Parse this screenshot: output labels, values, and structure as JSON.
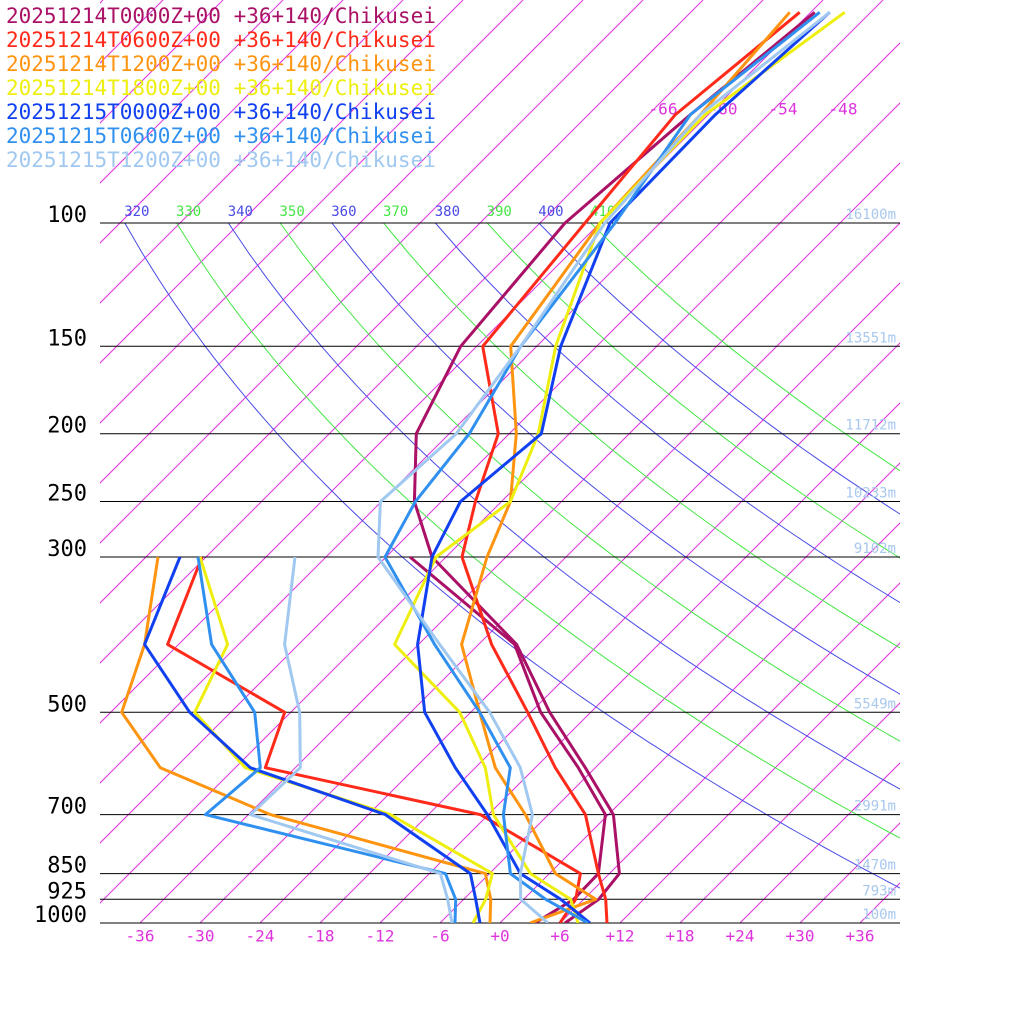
{
  "chart_data": {
    "type": "skewt",
    "ylim": [
      1000,
      48
    ],
    "yticks": [
      100,
      150,
      200,
      250,
      300,
      500,
      700,
      850,
      925,
      1000
    ],
    "height_labels": [
      "16100m",
      "13551m",
      "11712m",
      "10233m",
      "9102m",
      "5549m",
      "2991m",
      "1470m",
      "793m",
      "100m"
    ],
    "xlim": [
      -40,
      40
    ],
    "xticks": [
      -36,
      -30,
      -24,
      -18,
      -12,
      -6,
      {
        "value": 0,
        "label": "+0"
      },
      {
        "value": 6,
        "label": "+6"
      },
      {
        "value": 12,
        "label": "+12"
      },
      {
        "value": 18,
        "label": "+18"
      },
      {
        "value": 24,
        "label": "+24"
      },
      {
        "value": 30,
        "label": "+30"
      },
      {
        "value": 36,
        "label": "+36"
      }
    ],
    "top_xticks": [
      -66,
      -60,
      -54,
      -48
    ],
    "isotherm_step": 6,
    "isotherm_color": "#dd33dd",
    "theta_ticks": [
      320,
      330,
      340,
      350,
      360,
      370,
      380,
      390,
      400,
      410
    ],
    "theta_colors": [
      "#4a4ae6",
      "#44e644"
    ],
    "pressure_levels": [
      1000,
      925,
      850,
      700,
      600,
      500,
      400,
      300,
      250,
      200,
      150,
      100,
      70,
      50
    ],
    "dewpoint_levels": [
      1000,
      925,
      850,
      700,
      600,
      500,
      400,
      300
    ],
    "series": [
      {
        "name": "20251214T0000Z+00 +36+140/Chikusei",
        "color": "#aa1166",
        "temperature": [
          6.5,
          7.5,
          7,
          0.5,
          -7,
          -16.1,
          -26.2,
          -43.4,
          -50.7,
          -57.3,
          -61.6,
          -63.5,
          -61.8,
          -59.6
        ],
        "dewpoint": [
          3.5,
          5,
          4.9,
          -0.3,
          -7.7,
          -17,
          -26.4,
          -45.6
        ]
      },
      {
        "name": "20251214T0600Z+00 +36+140/Chikusei",
        "color": "#ff2a1a",
        "temperature": [
          10.7,
          8.2,
          4.9,
          -2.3,
          -10,
          -18.3,
          -28.7,
          -40.4,
          -44.6,
          -49.1,
          -59.4,
          -61.5,
          -63.3,
          -61.1
        ],
        "dewpoint": [
          6,
          5.2,
          3.1,
          -12.8,
          -39,
          -42.6,
          -61.1,
          -66.4
        ]
      },
      {
        "name": "20251214T1200Z+00 +36+140/Chikusei",
        "color": "#ff9410",
        "temperature": [
          3,
          7.2,
          0.6,
          -8.3,
          -16,
          -23.1,
          -31.7,
          -37.9,
          -41.1,
          -47.3,
          -56.6,
          -60,
          -60.8,
          -62.1
        ],
        "dewpoint": [
          -1,
          -3.3,
          -6.4,
          -33.8,
          -49.5,
          -58.9,
          -63.4,
          -70.8
        ]
      },
      {
        "name": "20251214T1800Z+00 +36+140/Chikusei",
        "color": "#eeee10",
        "temperature": [
          7.8,
          4.7,
          -1.9,
          -11.5,
          -17,
          -25.1,
          -38.4,
          -43,
          -41.1,
          -45.1,
          -52.1,
          -60,
          -60.3,
          -56.6
        ],
        "dewpoint": [
          -2.7,
          -3.8,
          -5.7,
          -21.8,
          -41,
          -51.6,
          -55.1,
          -66.6
        ]
      },
      {
        "name": "20251215T0000Z+00 +36+140/Chikusei",
        "color": "#1040f0",
        "temperature": [
          9,
          3.7,
          -2.9,
          -12.1,
          -20,
          -28.6,
          -36.1,
          -43.4,
          -46.1,
          -44.8,
          -51.6,
          -59,
          -59.3,
          -58.1
        ],
        "dewpoint": [
          -2,
          -4.8,
          -7.9,
          -22.3,
          -40.5,
          -52.1,
          -63.4,
          -68.6
        ]
      },
      {
        "name": "20251215T0600Z+00 +36+140/Chikusei",
        "color": "#3090f0",
        "temperature": [
          8.8,
          2.2,
          -3.9,
          -10.5,
          -14.5,
          -23.1,
          -34.4,
          -48.1,
          -50.6,
          -52,
          -55.6,
          -58.5,
          -61.8,
          -59.1
        ],
        "dewpoint": [
          -4.5,
          -6.8,
          -10.4,
          -40.3,
          -39.5,
          -45.6,
          -56.7,
          -66.8
        ]
      },
      {
        "name": "20251215T1200Z+00 +36+140/Chikusei",
        "color": "#a0c8f0",
        "temperature": [
          4.8,
          -0.3,
          -2.9,
          -7.6,
          -13.5,
          -22.1,
          -33.9,
          -48.8,
          -54.1,
          -53.3,
          -55.6,
          -59.5,
          -60.8,
          -58.1
        ],
        "dewpoint": [
          -4.8,
          -7.6,
          -10.9,
          -35.8,
          -35.5,
          -41.1,
          -49.4,
          -57.1
        ]
      }
    ]
  }
}
